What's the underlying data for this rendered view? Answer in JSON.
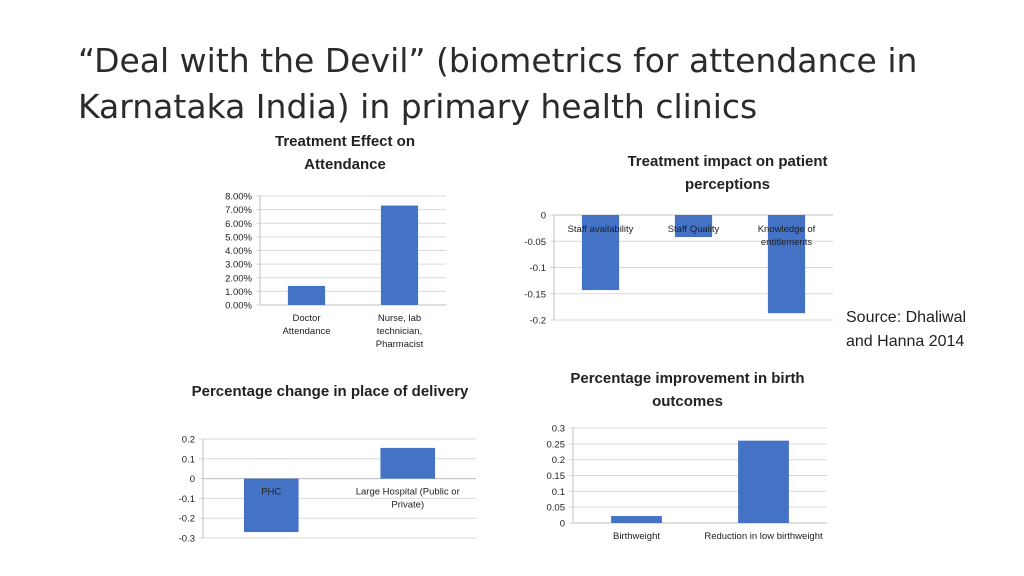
{
  "slide": {
    "title": "“Deal with the Devil” (biometrics for attendance in Karnataka India) in primary health clinics",
    "source_line1": "Source: Dhaliwal",
    "source_line2": "and Hanna 2014"
  },
  "chart_data": [
    {
      "id": "attendance",
      "type": "bar",
      "title": "Treatment Effect on Attendance",
      "categories": [
        "Doctor Attendance",
        "Nurse, lab technician, Pharmacist"
      ],
      "values": [
        0.014,
        0.073
      ],
      "yticks": [
        0,
        0.01,
        0.02,
        0.03,
        0.04,
        0.05,
        0.06,
        0.07,
        0.08
      ],
      "ytick_labels": [
        "0.00%",
        "1.00%",
        "2.00%",
        "3.00%",
        "4.00%",
        "5.00%",
        "6.00%",
        "7.00%",
        "8.00%"
      ],
      "ylim": [
        0,
        0.08
      ],
      "grid": true,
      "bar_color": "#4472C4"
    },
    {
      "id": "perceptions",
      "type": "bar",
      "title": "Treatment impact on patient perceptions",
      "categories": [
        "Staff availability",
        "Staff Quality",
        "Knowledge of entitlements"
      ],
      "values": [
        -0.143,
        -0.042,
        -0.187
      ],
      "yticks": [
        0,
        -0.05,
        -0.1,
        -0.15,
        -0.2
      ],
      "ytick_labels": [
        "0",
        "-0.05",
        "-0.1",
        "-0.15",
        "-0.2"
      ],
      "ylim": [
        -0.2,
        0
      ],
      "grid": true,
      "bar_color": "#4472C4"
    },
    {
      "id": "delivery",
      "type": "bar",
      "title": "Percentage change in place of delivery",
      "categories": [
        "PHC",
        "Large Hospital (Public or Private)"
      ],
      "values": [
        -0.27,
        0.155
      ],
      "yticks": [
        0.2,
        0.1,
        0,
        -0.1,
        -0.2,
        -0.3
      ],
      "ytick_labels": [
        "0.2",
        "0.1",
        "0",
        "-0.1",
        "-0.2",
        "-0.3"
      ],
      "ylim": [
        -0.3,
        0.2
      ],
      "grid": true,
      "bar_color": "#4472C4"
    },
    {
      "id": "birth",
      "type": "bar",
      "title": "Percentage improvement in birth outcomes",
      "categories": [
        "Birthweight",
        "Reduction in low birthweight"
      ],
      "values": [
        0.022,
        0.26
      ],
      "yticks": [
        0,
        0.05,
        0.1,
        0.15,
        0.2,
        0.25,
        0.3
      ],
      "ytick_labels": [
        "0",
        "0.05",
        "0.1",
        "0.15",
        "0.2",
        "0.25",
        "0.3"
      ],
      "ylim": [
        0,
        0.3
      ],
      "grid": true,
      "bar_color": "#4472C4"
    }
  ]
}
